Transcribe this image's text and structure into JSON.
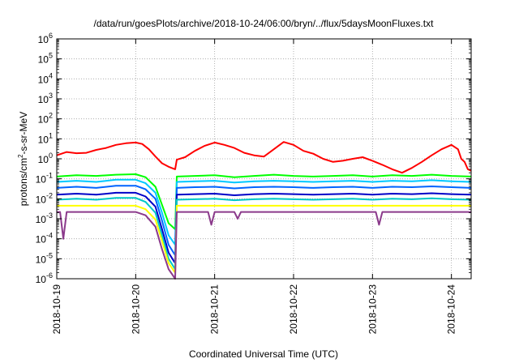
{
  "chart_data": {
    "type": "line",
    "title": "/data/run/goesPlots/archive/2018-10-24/06:00/bryn/../flux/5daysMoonFluxes.txt",
    "xlabel": "Coordinated Universal Time (UTC)",
    "ylabel": {
      "base": "protons/cm",
      "sup": "2",
      "rest": "-s-sr-MeV"
    },
    "yscale": "log",
    "ylim": [
      1e-06,
      1000000.0
    ],
    "xlim": [
      "2018-10-19T00:00",
      "2018-10-24T06:00"
    ],
    "x_ticks": [
      "2018-10-19",
      "2018-10-20",
      "2018-10-21",
      "2018-10-22",
      "2018-10-23",
      "2018-10-24"
    ],
    "y_ticks": [
      {
        "value": 1e-06,
        "base": "10",
        "exp": "-6"
      },
      {
        "value": 1e-05,
        "base": "10",
        "exp": "-5"
      },
      {
        "value": 0.0001,
        "base": "10",
        "exp": "-4"
      },
      {
        "value": 0.001,
        "base": "10",
        "exp": "-3"
      },
      {
        "value": 0.01,
        "base": "10",
        "exp": "-2"
      },
      {
        "value": 0.1,
        "base": "10",
        "exp": "-1"
      },
      {
        "value": 1,
        "base": "10",
        "exp": "0"
      },
      {
        "value": 10,
        "base": "10",
        "exp": "1"
      },
      {
        "value": 100,
        "base": "10",
        "exp": "2"
      },
      {
        "value": 1000,
        "base": "10",
        "exp": "3"
      },
      {
        "value": 10000,
        "base": "10",
        "exp": "4"
      },
      {
        "value": 100000,
        "base": "10",
        "exp": "5"
      },
      {
        "value": 1000000,
        "base": "10",
        "exp": "6"
      }
    ],
    "grid": true,
    "legend": "none",
    "series": [
      {
        "color": "#ff0000",
        "points": [
          [
            "2018-10-19T00:00",
            1.5
          ],
          [
            "2018-10-19T03:00",
            2.2
          ],
          [
            "2018-10-19T06:00",
            1.9
          ],
          [
            "2018-10-19T09:00",
            2.0
          ],
          [
            "2018-10-19T12:00",
            2.8
          ],
          [
            "2018-10-19T15:00",
            3.5
          ],
          [
            "2018-10-19T18:00",
            5.0
          ],
          [
            "2018-10-19T21:00",
            6.0
          ],
          [
            "2018-10-20T00:00",
            6.5
          ],
          [
            "2018-10-20T02:00",
            5.5
          ],
          [
            "2018-10-20T04:00",
            3.0
          ],
          [
            "2018-10-20T06:00",
            1.3
          ],
          [
            "2018-10-20T08:00",
            0.6
          ],
          [
            "2018-10-20T10:00",
            0.4
          ],
          [
            "2018-10-20T12:00",
            0.3
          ],
          [
            "2018-10-20T12:30",
            0.9
          ],
          [
            "2018-10-20T15:00",
            1.2
          ],
          [
            "2018-10-20T18:00",
            2.5
          ],
          [
            "2018-10-20T21:00",
            4.5
          ],
          [
            "2018-10-21T00:00",
            6.5
          ],
          [
            "2018-10-21T03:00",
            5.0
          ],
          [
            "2018-10-21T06:00",
            3.5
          ],
          [
            "2018-10-21T09:00",
            2.0
          ],
          [
            "2018-10-21T12:00",
            1.5
          ],
          [
            "2018-10-21T15:00",
            1.3
          ],
          [
            "2018-10-21T18:00",
            3.0
          ],
          [
            "2018-10-21T21:00",
            7.0
          ],
          [
            "2018-10-22T00:00",
            5.0
          ],
          [
            "2018-10-22T03:00",
            2.5
          ],
          [
            "2018-10-22T06:00",
            1.8
          ],
          [
            "2018-10-22T09:00",
            1.0
          ],
          [
            "2018-10-22T12:00",
            0.7
          ],
          [
            "2018-10-22T15:00",
            0.8
          ],
          [
            "2018-10-22T18:00",
            1.0
          ],
          [
            "2018-10-22T21:00",
            1.2
          ],
          [
            "2018-10-23T00:00",
            0.8
          ],
          [
            "2018-10-23T03:00",
            0.5
          ],
          [
            "2018-10-23T06:00",
            0.3
          ],
          [
            "2018-10-23T09:00",
            0.2
          ],
          [
            "2018-10-23T12:00",
            0.35
          ],
          [
            "2018-10-23T15:00",
            0.7
          ],
          [
            "2018-10-23T18:00",
            1.5
          ],
          [
            "2018-10-23T21:00",
            3.0
          ],
          [
            "2018-10-24T00:00",
            5.0
          ],
          [
            "2018-10-24T02:00",
            3.0
          ],
          [
            "2018-10-24T03:00",
            1.0
          ],
          [
            "2018-10-24T04:00",
            0.7
          ],
          [
            "2018-10-24T05:00",
            0.3
          ],
          [
            "2018-10-24T06:00",
            0.25
          ]
        ]
      },
      {
        "color": "#00ff00",
        "points": [
          [
            "2018-10-19T00:00",
            0.13
          ],
          [
            "2018-10-19T06:00",
            0.15
          ],
          [
            "2018-10-19T12:00",
            0.14
          ],
          [
            "2018-10-19T18:00",
            0.16
          ],
          [
            "2018-10-20T00:00",
            0.17
          ],
          [
            "2018-10-20T03:00",
            0.12
          ],
          [
            "2018-10-20T06:00",
            0.04
          ],
          [
            "2018-10-20T08:00",
            0.005
          ],
          [
            "2018-10-20T10:00",
            0.0006
          ],
          [
            "2018-10-20T12:00",
            0.0003
          ],
          [
            "2018-10-20T12:30",
            0.13
          ],
          [
            "2018-10-20T18:00",
            0.14
          ],
          [
            "2018-10-21T00:00",
            0.15
          ],
          [
            "2018-10-21T06:00",
            0.12
          ],
          [
            "2018-10-21T12:00",
            0.14
          ],
          [
            "2018-10-21T18:00",
            0.16
          ],
          [
            "2018-10-22T00:00",
            0.14
          ],
          [
            "2018-10-22T06:00",
            0.13
          ],
          [
            "2018-10-22T12:00",
            0.14
          ],
          [
            "2018-10-22T18:00",
            0.15
          ],
          [
            "2018-10-23T00:00",
            0.13
          ],
          [
            "2018-10-23T06:00",
            0.15
          ],
          [
            "2018-10-23T12:00",
            0.14
          ],
          [
            "2018-10-23T18:00",
            0.16
          ],
          [
            "2018-10-24T00:00",
            0.14
          ],
          [
            "2018-10-24T06:00",
            0.13
          ]
        ]
      },
      {
        "color": "#00c8ff",
        "points": [
          [
            "2018-10-19T00:00",
            0.07
          ],
          [
            "2018-10-19T06:00",
            0.08
          ],
          [
            "2018-10-19T12:00",
            0.07
          ],
          [
            "2018-10-19T18:00",
            0.09
          ],
          [
            "2018-10-20T00:00",
            0.09
          ],
          [
            "2018-10-20T03:00",
            0.06
          ],
          [
            "2018-10-20T06:00",
            0.02
          ],
          [
            "2018-10-20T08:00",
            0.002
          ],
          [
            "2018-10-20T10:00",
            0.00015
          ],
          [
            "2018-10-20T12:00",
            5e-05
          ],
          [
            "2018-10-20T12:30",
            0.07
          ],
          [
            "2018-10-20T18:00",
            0.075
          ],
          [
            "2018-10-21T00:00",
            0.08
          ],
          [
            "2018-10-21T06:00",
            0.065
          ],
          [
            "2018-10-21T12:00",
            0.075
          ],
          [
            "2018-10-21T18:00",
            0.08
          ],
          [
            "2018-10-22T00:00",
            0.075
          ],
          [
            "2018-10-22T06:00",
            0.07
          ],
          [
            "2018-10-22T12:00",
            0.075
          ],
          [
            "2018-10-22T18:00",
            0.08
          ],
          [
            "2018-10-23T00:00",
            0.07
          ],
          [
            "2018-10-23T06:00",
            0.08
          ],
          [
            "2018-10-23T12:00",
            0.075
          ],
          [
            "2018-10-23T18:00",
            0.085
          ],
          [
            "2018-10-24T00:00",
            0.075
          ],
          [
            "2018-10-24T06:00",
            0.07
          ]
        ]
      },
      {
        "color": "#0064ff",
        "points": [
          [
            "2018-10-19T00:00",
            0.035
          ],
          [
            "2018-10-19T06:00",
            0.04
          ],
          [
            "2018-10-19T12:00",
            0.035
          ],
          [
            "2018-10-19T18:00",
            0.045
          ],
          [
            "2018-10-20T00:00",
            0.045
          ],
          [
            "2018-10-20T03:00",
            0.03
          ],
          [
            "2018-10-20T06:00",
            0.01
          ],
          [
            "2018-10-20T08:00",
            0.0008
          ],
          [
            "2018-10-20T10:00",
            5e-05
          ],
          [
            "2018-10-20T12:00",
            1.5e-05
          ],
          [
            "2018-10-20T12:30",
            0.035
          ],
          [
            "2018-10-20T18:00",
            0.038
          ],
          [
            "2018-10-21T00:00",
            0.04
          ],
          [
            "2018-10-21T06:00",
            0.033
          ],
          [
            "2018-10-21T12:00",
            0.038
          ],
          [
            "2018-10-21T18:00",
            0.04
          ],
          [
            "2018-10-22T00:00",
            0.038
          ],
          [
            "2018-10-22T06:00",
            0.035
          ],
          [
            "2018-10-22T12:00",
            0.038
          ],
          [
            "2018-10-22T18:00",
            0.04
          ],
          [
            "2018-10-23T00:00",
            0.035
          ],
          [
            "2018-10-23T06:00",
            0.04
          ],
          [
            "2018-10-23T12:00",
            0.038
          ],
          [
            "2018-10-23T18:00",
            0.042
          ],
          [
            "2018-10-24T00:00",
            0.038
          ],
          [
            "2018-10-24T06:00",
            0.035
          ]
        ]
      },
      {
        "color": "#0000c8",
        "points": [
          [
            "2018-10-19T00:00",
            0.016
          ],
          [
            "2018-10-19T06:00",
            0.018
          ],
          [
            "2018-10-19T12:00",
            0.016
          ],
          [
            "2018-10-19T18:00",
            0.02
          ],
          [
            "2018-10-20T00:00",
            0.02
          ],
          [
            "2018-10-20T03:00",
            0.013
          ],
          [
            "2018-10-20T06:00",
            0.004
          ],
          [
            "2018-10-20T08:00",
            0.0003
          ],
          [
            "2018-10-20T10:00",
            2e-05
          ],
          [
            "2018-10-20T12:00",
            6e-06
          ],
          [
            "2018-10-20T12:30",
            0.016
          ],
          [
            "2018-10-20T18:00",
            0.017
          ],
          [
            "2018-10-21T00:00",
            0.018
          ],
          [
            "2018-10-21T06:00",
            0.015
          ],
          [
            "2018-10-21T12:00",
            0.017
          ],
          [
            "2018-10-21T18:00",
            0.018
          ],
          [
            "2018-10-22T00:00",
            0.017
          ],
          [
            "2018-10-22T06:00",
            0.016
          ],
          [
            "2018-10-22T12:00",
            0.017
          ],
          [
            "2018-10-22T18:00",
            0.018
          ],
          [
            "2018-10-23T00:00",
            0.016
          ],
          [
            "2018-10-23T06:00",
            0.018
          ],
          [
            "2018-10-23T12:00",
            0.017
          ],
          [
            "2018-10-23T18:00",
            0.019
          ],
          [
            "2018-10-24T00:00",
            0.017
          ],
          [
            "2018-10-24T06:00",
            0.016
          ]
        ]
      },
      {
        "color": "#00c8c8",
        "points": [
          [
            "2018-10-19T00:00",
            0.009
          ],
          [
            "2018-10-19T06:00",
            0.01
          ],
          [
            "2018-10-19T12:00",
            0.009
          ],
          [
            "2018-10-19T18:00",
            0.011
          ],
          [
            "2018-10-20T00:00",
            0.011
          ],
          [
            "2018-10-20T03:00",
            0.007
          ],
          [
            "2018-10-20T06:00",
            0.002
          ],
          [
            "2018-10-20T08:00",
            0.00015
          ],
          [
            "2018-10-20T10:00",
            1e-05
          ],
          [
            "2018-10-20T12:00",
            3e-06
          ],
          [
            "2018-10-20T12:30",
            0.009
          ],
          [
            "2018-10-20T18:00",
            0.0095
          ],
          [
            "2018-10-21T00:00",
            0.01
          ],
          [
            "2018-10-21T06:00",
            0.0085
          ],
          [
            "2018-10-21T12:00",
            0.0095
          ],
          [
            "2018-10-21T18:00",
            0.01
          ],
          [
            "2018-10-22T00:00",
            0.0095
          ],
          [
            "2018-10-22T06:00",
            0.009
          ],
          [
            "2018-10-22T12:00",
            0.0095
          ],
          [
            "2018-10-22T18:00",
            0.01
          ],
          [
            "2018-10-23T00:00",
            0.009
          ],
          [
            "2018-10-23T06:00",
            0.01
          ],
          [
            "2018-10-23T12:00",
            0.0095
          ],
          [
            "2018-10-23T18:00",
            0.0105
          ],
          [
            "2018-10-24T00:00",
            0.0095
          ],
          [
            "2018-10-24T06:00",
            0.009
          ]
        ]
      },
      {
        "color": "#ffff00",
        "points": [
          [
            "2018-10-19T00:00",
            0.0045
          ],
          [
            "2018-10-19T06:00",
            0.0045
          ],
          [
            "2018-10-19T12:00",
            0.0045
          ],
          [
            "2018-10-19T18:00",
            0.0045
          ],
          [
            "2018-10-20T00:00",
            0.0045
          ],
          [
            "2018-10-20T03:00",
            0.003
          ],
          [
            "2018-10-20T06:00",
            0.0009
          ],
          [
            "2018-10-20T08:00",
            8e-05
          ],
          [
            "2018-10-20T10:00",
            6e-06
          ],
          [
            "2018-10-20T12:00",
            2e-06
          ],
          [
            "2018-10-20T12:30",
            0.0045
          ],
          [
            "2018-10-21T00:00",
            0.0045
          ],
          [
            "2018-10-21T12:00",
            0.0045
          ],
          [
            "2018-10-22T00:00",
            0.0045
          ],
          [
            "2018-10-22T12:00",
            0.0045
          ],
          [
            "2018-10-23T00:00",
            0.0045
          ],
          [
            "2018-10-23T12:00",
            0.0045
          ],
          [
            "2018-10-24T00:00",
            0.0045
          ],
          [
            "2018-10-24T06:00",
            0.0045
          ]
        ]
      },
      {
        "color": "#8b3a8b",
        "points": [
          [
            "2018-10-19T00:00",
            0.0022
          ],
          [
            "2018-10-19T01:00",
            0.0022
          ],
          [
            "2018-10-19T02:00",
            0.0001
          ],
          [
            "2018-10-19T03:00",
            0.0022
          ],
          [
            "2018-10-19T12:00",
            0.0022
          ],
          [
            "2018-10-20T00:00",
            0.0022
          ],
          [
            "2018-10-20T03:00",
            0.0015
          ],
          [
            "2018-10-20T06:00",
            0.0004
          ],
          [
            "2018-10-20T08:00",
            3e-05
          ],
          [
            "2018-10-20T10:00",
            3e-06
          ],
          [
            "2018-10-20T12:00",
            1e-06
          ],
          [
            "2018-10-20T12:30",
            0.0022
          ],
          [
            "2018-10-20T22:00",
            0.0022
          ],
          [
            "2018-10-20T23:00",
            0.0005
          ],
          [
            "2018-10-21T00:00",
            0.0022
          ],
          [
            "2018-10-21T06:00",
            0.0022
          ],
          [
            "2018-10-21T07:00",
            0.001
          ],
          [
            "2018-10-21T08:00",
            0.0022
          ],
          [
            "2018-10-22T00:00",
            0.0022
          ],
          [
            "2018-10-22T12:00",
            0.0022
          ],
          [
            "2018-10-23T00:00",
            0.0022
          ],
          [
            "2018-10-23T01:00",
            0.0022
          ],
          [
            "2018-10-23T02:00",
            0.0005
          ],
          [
            "2018-10-23T03:00",
            0.0022
          ],
          [
            "2018-10-23T12:00",
            0.0022
          ],
          [
            "2018-10-24T00:00",
            0.0022
          ],
          [
            "2018-10-24T06:00",
            0.0022
          ]
        ]
      }
    ]
  }
}
